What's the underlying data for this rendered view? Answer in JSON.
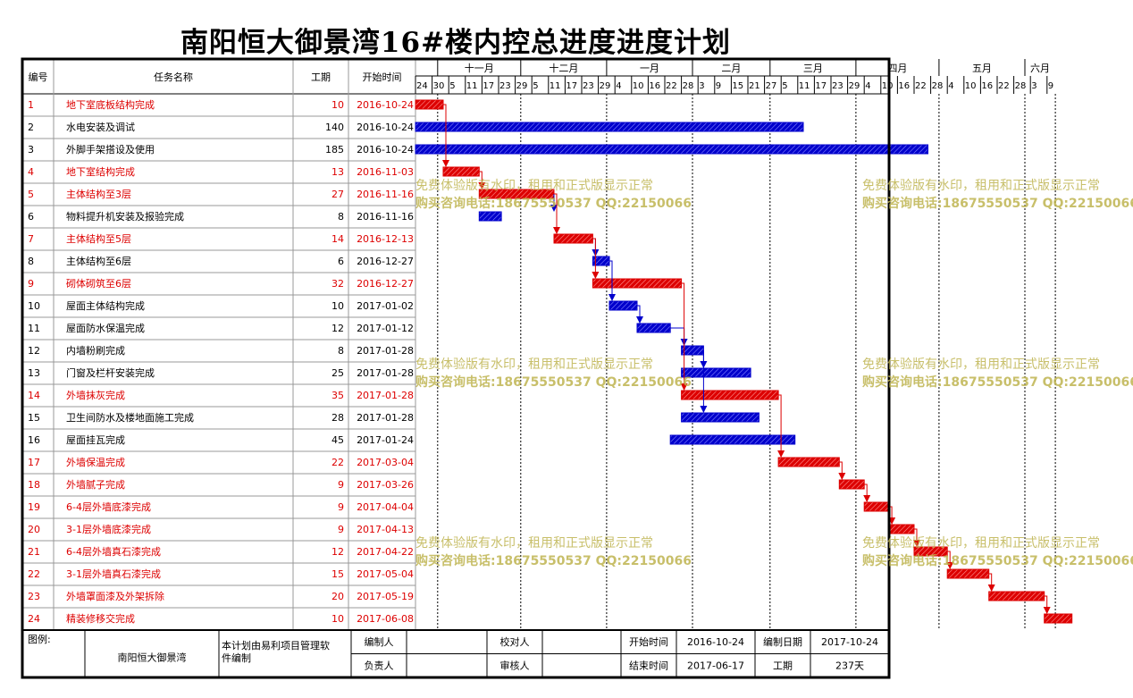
{
  "title": "南阳恒大御景湾16#楼内控总进度进度计划",
  "header": {
    "col_id": "编号",
    "col_name": "任务名称",
    "col_dur": "工期",
    "col_start": "开始时间"
  },
  "timeline": {
    "months": [
      "十一月",
      "十二月",
      "一月",
      "二月",
      "三月",
      "四月",
      "五月",
      "六月"
    ],
    "ticks": [
      "24",
      "30",
      "5",
      "11",
      "17",
      "23",
      "29",
      "5",
      "11",
      "17",
      "23",
      "29",
      "4",
      "10",
      "16",
      "22",
      "28",
      "3",
      "9",
      "15",
      "21",
      "27",
      "5",
      "11",
      "17",
      "23",
      "29",
      "4",
      "10",
      "16",
      "22",
      "28",
      "4",
      "10",
      "16",
      "22",
      "28",
      "3",
      "9"
    ]
  },
  "chart_data": {
    "type": "gantt",
    "title": "南阳恒大御景湾16#楼内控总进度进度计划",
    "tasks": [
      {
        "id": "1",
        "name": "地下室底板结构完成",
        "duration": "10",
        "start": "2016-10-24",
        "critical": true
      },
      {
        "id": "2",
        "name": "水电安装及调试",
        "duration": "140",
        "start": "2016-10-24",
        "critical": false
      },
      {
        "id": "3",
        "name": "外脚手架搭设及使用",
        "duration": "185",
        "start": "2016-10-24",
        "critical": false
      },
      {
        "id": "4",
        "name": "地下室结构完成",
        "duration": "13",
        "start": "2016-11-03",
        "critical": true
      },
      {
        "id": "5",
        "name": "主体结构至3层",
        "duration": "27",
        "start": "2016-11-16",
        "critical": true
      },
      {
        "id": "6",
        "name": "物料提升机安装及报验完成",
        "duration": "8",
        "start": "2016-11-16",
        "critical": false
      },
      {
        "id": "7",
        "name": "主体结构至5层",
        "duration": "14",
        "start": "2016-12-13",
        "critical": true
      },
      {
        "id": "8",
        "name": "主体结构至6层",
        "duration": "6",
        "start": "2016-12-27",
        "critical": false
      },
      {
        "id": "9",
        "name": "砌体砌筑至6层",
        "duration": "32",
        "start": "2016-12-27",
        "critical": true
      },
      {
        "id": "10",
        "name": "屋面主体结构完成",
        "duration": "10",
        "start": "2017-01-02",
        "critical": false
      },
      {
        "id": "11",
        "name": "屋面防水保温完成",
        "duration": "12",
        "start": "2017-01-12",
        "critical": false
      },
      {
        "id": "12",
        "name": "内墙粉刷完成",
        "duration": "8",
        "start": "2017-01-28",
        "critical": false
      },
      {
        "id": "13",
        "name": "门窗及栏杆安装完成",
        "duration": "25",
        "start": "2017-01-28",
        "critical": false
      },
      {
        "id": "14",
        "name": "外墙抹灰完成",
        "duration": "35",
        "start": "2017-01-28",
        "critical": true
      },
      {
        "id": "15",
        "name": "卫生间防水及楼地面施工完成",
        "duration": "28",
        "start": "2017-01-28",
        "critical": false
      },
      {
        "id": "16",
        "name": "屋面挂瓦完成",
        "duration": "45",
        "start": "2017-01-24",
        "critical": false
      },
      {
        "id": "17",
        "name": "外墙保温完成",
        "duration": "22",
        "start": "2017-03-04",
        "critical": true
      },
      {
        "id": "18",
        "name": "外墙腻子完成",
        "duration": "9",
        "start": "2017-03-26",
        "critical": true
      },
      {
        "id": "19",
        "name": "6-4层外墙底漆完成",
        "duration": "9",
        "start": "2017-04-04",
        "critical": true
      },
      {
        "id": "20",
        "name": "3-1层外墙底漆完成",
        "duration": "9",
        "start": "2017-04-13",
        "critical": true
      },
      {
        "id": "21",
        "name": "6-4层外墙真石漆完成",
        "duration": "12",
        "start": "2017-04-22",
        "critical": true
      },
      {
        "id": "22",
        "name": "3-1层外墙真石漆完成",
        "duration": "15",
        "start": "2017-05-04",
        "critical": true
      },
      {
        "id": "23",
        "name": "外墙罩面漆及外架拆除",
        "duration": "20",
        "start": "2017-05-19",
        "critical": true
      },
      {
        "id": "24",
        "name": "精装修移交完成",
        "duration": "10",
        "start": "2017-06-08",
        "critical": true
      }
    ],
    "links": [
      [
        1,
        4
      ],
      [
        4,
        5
      ],
      [
        5,
        6
      ],
      [
        5,
        7
      ],
      [
        7,
        8
      ],
      [
        7,
        9
      ],
      [
        8,
        10
      ],
      [
        10,
        11
      ],
      [
        11,
        12
      ],
      [
        9,
        14
      ],
      [
        12,
        13
      ],
      [
        12,
        15
      ],
      [
        14,
        17
      ],
      [
        17,
        18
      ],
      [
        18,
        19
      ],
      [
        19,
        20
      ],
      [
        20,
        21
      ],
      [
        21,
        22
      ],
      [
        22,
        23
      ],
      [
        23,
        24
      ]
    ],
    "axis_start": "2016-10-24",
    "axis_end": "2017-06-12",
    "critical_color": "#dd0000",
    "normal_color": "#0000cc"
  },
  "footer": {
    "legend_label": "图例:",
    "project": "南阳恒大御景湾",
    "software": "本计划由易利项目管理软件编制",
    "editor_label": "编制人",
    "editor": "",
    "checker_label": "校对人",
    "checker": "",
    "start_label": "开始时间",
    "start": "2016-10-24",
    "date_label": "编制日期",
    "date": "2017-10-24",
    "owner_label": "负责人",
    "owner": "",
    "reviewer_label": "审核人",
    "reviewer": "",
    "end_label": "结束时间",
    "end": "2017-06-17",
    "dur_label": "工期",
    "total_dur": "237天"
  },
  "watermark": {
    "line1": "免费体验版有水印，租用和正式版显示正常",
    "line2": "购买咨询电话:18675550537 QQ:22150066"
  }
}
